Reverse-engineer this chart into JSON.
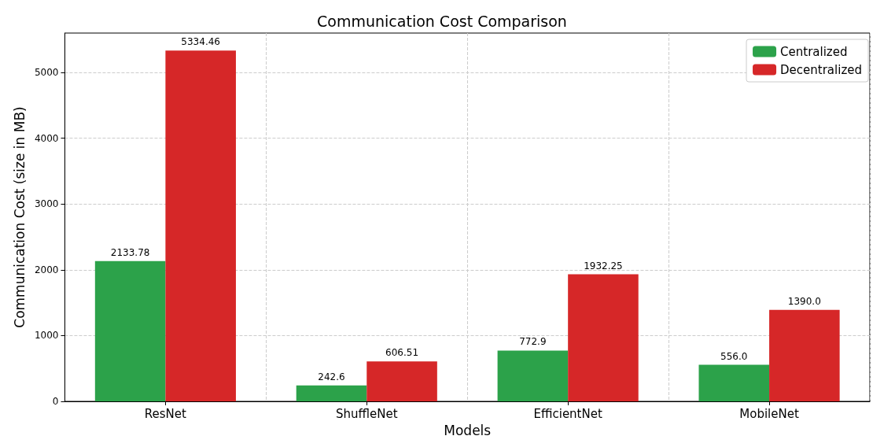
{
  "chart_data": {
    "type": "bar",
    "title": "Communication Cost Comparison",
    "xlabel": "Models",
    "ylabel": "Communication Cost (size in MB)",
    "categories": [
      "ResNet",
      "ShuffleNet",
      "EfficientNet",
      "MobileNet"
    ],
    "series": [
      {
        "name": "Centralized",
        "color": "#2ca24a",
        "values": [
          2133.78,
          242.6,
          772.9,
          556.0
        ],
        "value_labels": [
          "2133.78",
          "242.6",
          "772.9",
          "556.0"
        ]
      },
      {
        "name": "Decentralized",
        "color": "#d62728",
        "values": [
          5334.46,
          606.51,
          1932.25,
          1390.0
        ],
        "value_labels": [
          "5334.46",
          "606.51",
          "1932.25",
          "1390.0"
        ]
      }
    ],
    "ylim": [
      0,
      5600
    ],
    "yticks": [
      0,
      1000,
      2000,
      3000,
      4000,
      5000
    ],
    "grid": true,
    "legend": "top right"
  }
}
